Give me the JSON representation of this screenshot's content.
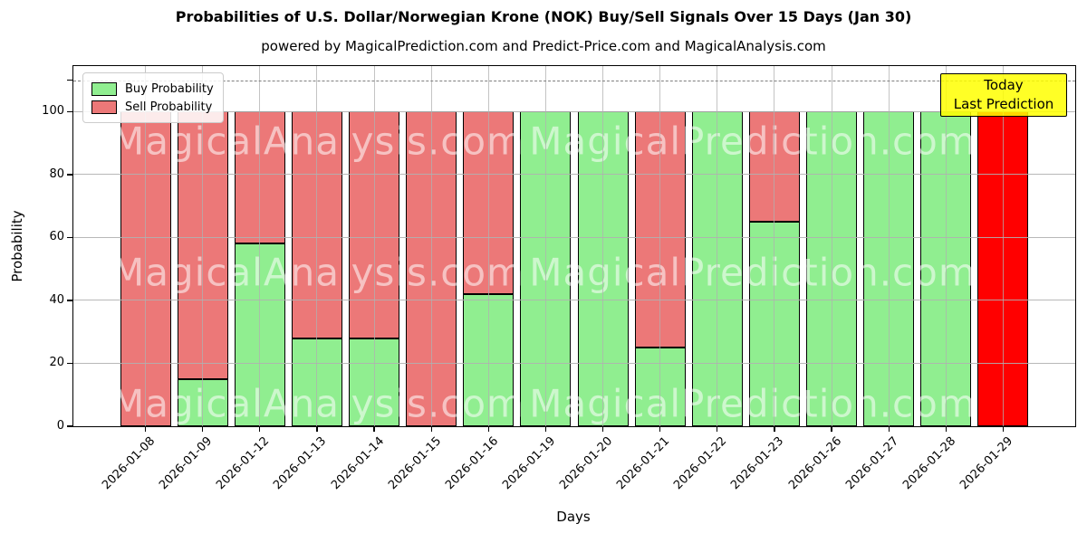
{
  "title": "Probabilities of U.S. Dollar/Norwegian Krone (NOK) Buy/Sell Signals Over 15 Days (Jan 30)",
  "subtitle": "powered by MagicalPrediction.com and Predict-Price.com and MagicalAnalysis.com",
  "annotation": {
    "line1": "Today",
    "line2": "Last Prediction"
  },
  "legend": [
    {
      "label": "Buy Probability",
      "color": "#90ee90"
    },
    {
      "label": "Sell Probability",
      "color": "#ec7878"
    }
  ],
  "watermarks": {
    "left": "MagicalAnalysis.com",
    "right": "MagicalPrediction.com"
  },
  "colors": {
    "buy": "#90ee90",
    "sell": "#ec7878",
    "last_prediction": "#ff0000",
    "grid": "#b0b0b0",
    "annotation_bg": "#ffff00",
    "dashed_line": "#7f7f7f"
  },
  "chart_data": {
    "type": "bar",
    "stacked": true,
    "title": "Probabilities of U.S. Dollar/Norwegian Krone (NOK) Buy/Sell Signals Over 15 Days (Jan 30)",
    "xlabel": "Days",
    "ylabel": "Probability",
    "categories": [
      "2026-01-08",
      "2026-01-09",
      "2026-01-12",
      "2026-01-13",
      "2026-01-14",
      "2026-01-15",
      "2026-01-16",
      "2026-01-19",
      "2026-01-20",
      "2026-01-21",
      "2026-01-22",
      "2026-01-23",
      "2026-01-26",
      "2026-01-27",
      "2026-01-28",
      "2026-01-29"
    ],
    "series": [
      {
        "name": "Buy Probability",
        "color": "#90ee90",
        "values": [
          0,
          15,
          58,
          28,
          28,
          0,
          42,
          100,
          100,
          25,
          100,
          65,
          100,
          100,
          100,
          0
        ]
      },
      {
        "name": "Sell Probability",
        "color": "#ec7878",
        "values": [
          100,
          85,
          42,
          72,
          72,
          100,
          58,
          0,
          0,
          75,
          0,
          35,
          0,
          0,
          0,
          100
        ]
      }
    ],
    "last_bar_color": "#ff0000",
    "yticks": [
      0,
      20,
      40,
      60,
      80,
      100
    ],
    "ylim": [
      0,
      114.5
    ],
    "dashed_line_y": 110,
    "grid": true,
    "legend_position": "upper left"
  }
}
